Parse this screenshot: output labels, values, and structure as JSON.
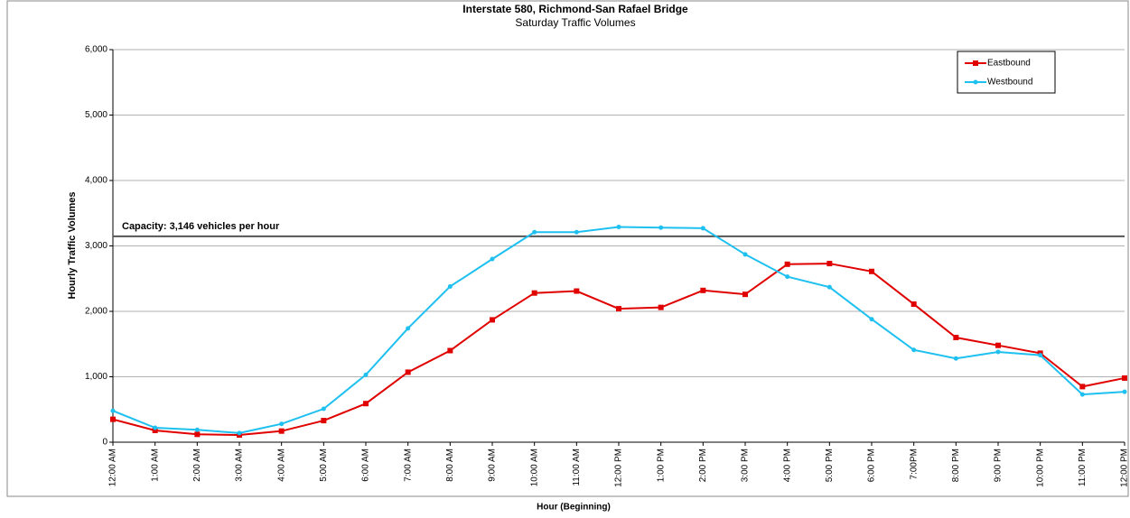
{
  "chart_data": {
    "type": "line",
    "title": "Interstate 580, Richmond-San Rafael Bridge",
    "subtitle": "Saturday Traffic Volumes",
    "x_label": "Hour (Beginning)",
    "y_label": "Hourly Traffic Volumes",
    "categories": [
      "12:00 AM",
      "1:00 AM",
      "2:00 AM",
      "3:00 AM",
      "4:00 AM",
      "5:00 AM",
      "6:00 AM",
      "7:00 AM",
      "8:00 AM",
      "9:00 AM",
      "10:00 AM",
      "11:00 AM",
      "12:00 PM",
      "1:00 PM",
      "2:00 PM",
      "3:00 PM",
      "4:00 PM",
      "5:00 PM",
      "6:00 PM",
      "7:00PM",
      "8:00 PM",
      "9:00 PM",
      "10:00 PM",
      "11:00 PM",
      "12:00 PM"
    ],
    "series": [
      {
        "name": "Eastbound",
        "color": "#e00000",
        "marker": "square",
        "values": [
          350,
          180,
          120,
          110,
          170,
          330,
          590,
          1070,
          1400,
          1870,
          2280,
          2310,
          2040,
          2060,
          2320,
          2260,
          2720,
          2730,
          2610,
          2110,
          1600,
          1480,
          1360,
          850,
          980
        ]
      },
      {
        "name": "Westbound",
        "color": "#1ec0f0",
        "marker": "circle",
        "values": [
          480,
          220,
          190,
          140,
          280,
          510,
          1030,
          1740,
          2380,
          2800,
          3210,
          3210,
          3290,
          3280,
          3270,
          2870,
          2530,
          2370,
          1880,
          1410,
          1280,
          1380,
          1330,
          730,
          770
        ]
      }
    ],
    "capacity": {
      "label": "Capacity: 3,146 vehicles per hour",
      "value": 3146
    },
    "ylim": [
      0,
      6000
    ],
    "yticks": [
      0,
      {
        "value": 1000,
        "label": "1,000"
      },
      {
        "value": 2000,
        "label": "2,000"
      },
      {
        "value": 3000,
        "label": "3,000"
      },
      {
        "value": 4000,
        "label": "4,000"
      },
      {
        "value": 5000,
        "label": "5,000"
      },
      {
        "value": 6000,
        "label": "6,000"
      }
    ],
    "grid": true,
    "legend": "top-right"
  }
}
